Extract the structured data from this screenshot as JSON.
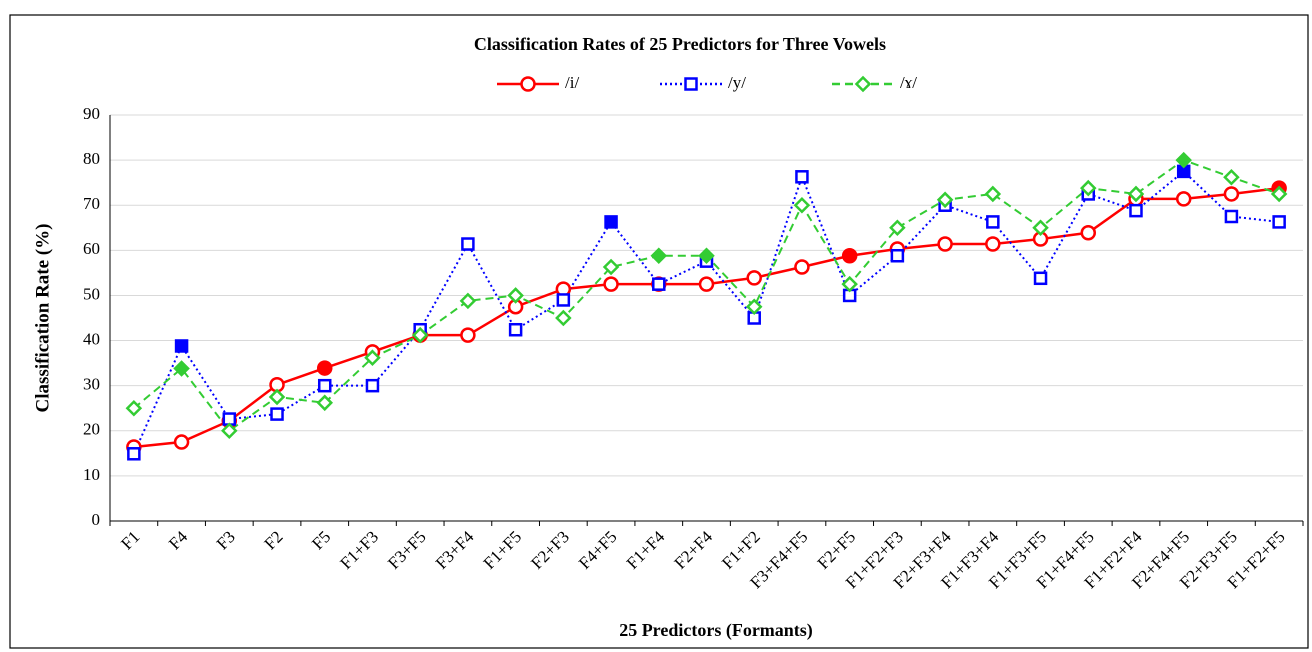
{
  "chart_data": {
    "type": "line",
    "title": "Classification Rates of 25 Predictors for Three Vowels",
    "x_label": "25 Predictors (Formants)",
    "y_label": "Classification Rate (%)",
    "categories": [
      "F1",
      "F4",
      "F3",
      "F2",
      "F5",
      "F1+F3",
      "F3+F5",
      "F3+F4",
      "F1+F5",
      "F2+F3",
      "F4+F5",
      "F1+F4",
      "F2+F4",
      "F1+F2",
      "F3+F4+F5",
      "F2+F5",
      "F1+F2+F3",
      "F2+F3+F4",
      "F1+F3+F4",
      "F1+F3+F5",
      "F1+F4+F5",
      "F1+F2+F4",
      "F2+F4+F5",
      "F2+F3+F5",
      "F1+F2+F5"
    ],
    "series": [
      {
        "name": "/i/",
        "color": "#ff0000",
        "line_style": "solid",
        "marker": "circle",
        "filled_points": [
          4,
          15,
          24
        ],
        "values": [
          16.4,
          17.5,
          22.2,
          30.2,
          33.9,
          37.5,
          41.2,
          41.2,
          47.5,
          51.4,
          52.5,
          52.5,
          52.5,
          53.9,
          56.3,
          58.8,
          60.3,
          61.4,
          61.4,
          62.5,
          63.9,
          71.4,
          71.4,
          72.5,
          73.8
        ]
      },
      {
        "name": "/y/",
        "color": "#0000ff",
        "line_style": "dotted",
        "marker": "square",
        "filled_points": [
          1,
          10,
          22
        ],
        "values": [
          14.9,
          38.8,
          22.6,
          23.7,
          30,
          30,
          42.4,
          61.4,
          42.4,
          49,
          66.3,
          52.5,
          57.6,
          45,
          76.3,
          50,
          58.8,
          70,
          66.3,
          53.8,
          72.5,
          68.8,
          77.5,
          67.5,
          66.3
        ]
      },
      {
        "name": "/ɤ/",
        "color": "#33cc33",
        "line_style": "dashed",
        "marker": "diamond",
        "filled_points": [
          1,
          11,
          12,
          22
        ],
        "values": [
          25,
          33.8,
          20,
          27.5,
          26.2,
          36.2,
          41.2,
          48.8,
          50,
          45,
          56.3,
          58.8,
          58.8,
          47.5,
          70,
          52.5,
          65,
          71.2,
          72.5,
          65,
          73.8,
          72.5,
          80,
          76.2,
          72.5
        ]
      }
    ],
    "ylim": [
      0,
      90
    ],
    "yticks": [
      0,
      10,
      20,
      30,
      40,
      50,
      60,
      70,
      80,
      90
    ],
    "grid": true,
    "legend": "top"
  }
}
